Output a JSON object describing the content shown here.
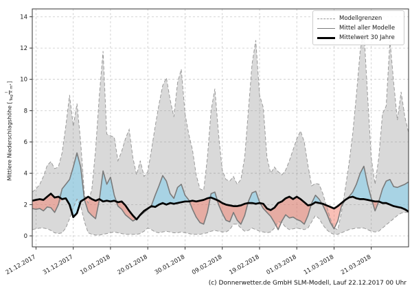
{
  "figure": {
    "background": "#ffffff",
    "caption": "(c) Donnerwetter.de GmbH SLM-Modell, Lauf 22.12.2017 00 Uhr"
  },
  "legend": {
    "items": [
      {
        "label": "Modellgrenzen",
        "sample": "dashed-gray-line"
      },
      {
        "label": "Mittel aller Modelle",
        "sample": "solid-gray-line"
      },
      {
        "label": "Mittelwert 30 Jahre",
        "sample": "thick-black-line"
      }
    ]
  },
  "chart_data": {
    "type": "line",
    "title": "",
    "ylabel_prefix": "Mittlere Niederschlagshöhe [",
    "ylabel_frac_num": "l",
    "ylabel_frac_den": "Tag × m²",
    "ylabel_suffix": "]",
    "xlabel": "",
    "x_tick_labels": [
      "21.12.2017",
      "31.12.2017",
      "10.01.2018",
      "20.01.2018",
      "30.01.2018",
      "09.02.2018",
      "19.02.2018",
      "01.03.2018",
      "11.03.2018",
      "21.03.2018"
    ],
    "x_tick_days": [
      0,
      10,
      20,
      30,
      40,
      50,
      60,
      70,
      80,
      90
    ],
    "x_start_day": -1,
    "x_end_day": 100,
    "step_days": 1,
    "y_ticks": [
      0,
      2,
      4,
      6,
      8,
      10,
      12,
      14
    ],
    "ylim": [
      -0.7,
      14.5
    ],
    "grid": true,
    "legend_position": "upper right",
    "series": [
      {
        "name": "Modellgrenzen (obere Grenze)",
        "role": "upper_bound",
        "values": [
          2.8,
          3.0,
          3.3,
          3.8,
          4.5,
          4.75,
          4.3,
          4.4,
          5.3,
          7.0,
          9.0,
          7.0,
          8.45,
          6.0,
          2.6,
          2.1,
          3.0,
          5.5,
          9.0,
          11.8,
          6.5,
          6.4,
          6.3,
          4.8,
          5.4,
          6.2,
          6.8,
          5.0,
          3.9,
          4.8,
          3.8,
          4.1,
          5.5,
          7.0,
          8.4,
          9.6,
          10.1,
          8.7,
          7.6,
          9.8,
          10.65,
          7.8,
          6.5,
          5.5,
          3.9,
          3.0,
          2.9,
          5.0,
          8.0,
          9.4,
          6.5,
          4.2,
          3.6,
          3.5,
          3.8,
          3.3,
          3.6,
          5.0,
          8.0,
          11.0,
          12.5,
          9.0,
          8.2,
          5.0,
          4.0,
          4.4,
          4.1,
          3.9,
          4.2,
          4.8,
          5.5,
          6.2,
          6.7,
          6.0,
          4.5,
          3.2,
          3.35,
          3.3,
          2.7,
          1.9,
          1.1,
          0.5,
          0.4,
          1.5,
          3.0,
          4.6,
          6.5,
          9.0,
          11.8,
          13.2,
          9.0,
          5.0,
          3.3,
          5.0,
          7.8,
          8.3,
          12.5,
          9.8,
          7.4,
          9.2,
          7.6,
          6.6
        ]
      },
      {
        "name": "Modellgrenzen (untere Grenze)",
        "role": "lower_bound",
        "values": [
          0.4,
          0.45,
          0.5,
          0.5,
          0.45,
          0.35,
          0.2,
          0.15,
          0.2,
          0.5,
          1.1,
          1.8,
          2.35,
          1.9,
          0.9,
          0.2,
          0.1,
          0.05,
          0.05,
          0.1,
          0.15,
          0.2,
          0.25,
          0.2,
          0.15,
          0.1,
          0.1,
          0.1,
          0.1,
          0.15,
          0.3,
          0.5,
          0.4,
          0.25,
          0.2,
          0.25,
          0.3,
          0.25,
          0.2,
          0.2,
          0.25,
          0.2,
          0.15,
          0.1,
          0.1,
          0.1,
          0.15,
          0.2,
          0.3,
          0.35,
          0.3,
          0.25,
          0.25,
          0.4,
          0.75,
          0.75,
          0.5,
          0.3,
          0.35,
          0.5,
          0.4,
          0.3,
          0.25,
          0.2,
          0.25,
          0.5,
          0.9,
          0.85,
          0.55,
          0.4,
          0.45,
          0.5,
          0.45,
          0.4,
          0.5,
          0.9,
          1.3,
          1.1,
          0.7,
          0.4,
          0.2,
          0.1,
          0.1,
          0.2,
          0.3,
          0.4,
          0.45,
          0.5,
          0.5,
          0.5,
          0.4,
          0.3,
          0.25,
          0.3,
          0.5,
          0.7,
          0.9,
          1.1,
          1.3,
          1.45,
          1.5,
          1.5
        ]
      },
      {
        "name": "Mittel aller Modelle",
        "role": "model_mean",
        "values": [
          1.75,
          1.7,
          1.75,
          1.6,
          1.85,
          1.8,
          1.5,
          2.0,
          3.0,
          3.3,
          3.6,
          4.4,
          5.3,
          4.4,
          2.3,
          1.55,
          1.3,
          1.1,
          2.3,
          4.15,
          3.3,
          3.75,
          2.6,
          1.9,
          1.7,
          1.35,
          1.15,
          0.95,
          1.1,
          1.3,
          1.5,
          1.7,
          1.95,
          2.6,
          3.2,
          3.85,
          3.5,
          2.7,
          2.4,
          3.1,
          3.3,
          2.6,
          2.3,
          1.7,
          1.2,
          0.85,
          0.75,
          1.5,
          2.7,
          2.8,
          2.0,
          1.45,
          1.0,
          0.9,
          1.5,
          1.0,
          0.75,
          1.3,
          2.2,
          2.75,
          2.85,
          2.15,
          1.75,
          1.5,
          1.25,
          0.85,
          0.4,
          0.95,
          1.35,
          1.15,
          1.2,
          1.05,
          0.95,
          0.75,
          1.3,
          2.1,
          2.6,
          2.35,
          1.95,
          1.45,
          0.85,
          0.45,
          0.95,
          1.9,
          2.3,
          2.5,
          2.8,
          3.3,
          4.0,
          4.45,
          3.3,
          2.4,
          1.6,
          2.2,
          3.0,
          3.5,
          3.6,
          3.15,
          3.1,
          3.2,
          3.3,
          3.45
        ]
      },
      {
        "name": "Mittelwert 30 Jahre",
        "role": "mean_30y",
        "values": [
          2.25,
          2.3,
          2.35,
          2.3,
          2.5,
          2.7,
          2.45,
          2.5,
          2.35,
          2.4,
          2.0,
          1.2,
          1.45,
          2.2,
          2.35,
          2.5,
          2.35,
          2.25,
          2.35,
          2.2,
          2.25,
          2.2,
          2.25,
          2.15,
          2.2,
          1.95,
          1.6,
          1.3,
          1.05,
          1.35,
          1.6,
          1.75,
          1.9,
          1.85,
          2.0,
          2.1,
          2.0,
          2.1,
          2.05,
          2.1,
          2.15,
          2.2,
          2.2,
          2.25,
          2.2,
          2.25,
          2.3,
          2.4,
          2.45,
          2.35,
          2.25,
          2.1,
          2.0,
          1.95,
          1.9,
          1.9,
          1.95,
          2.05,
          2.1,
          2.1,
          2.05,
          2.1,
          2.05,
          1.75,
          1.65,
          1.8,
          2.1,
          2.2,
          2.4,
          2.5,
          2.35,
          2.5,
          2.35,
          2.15,
          1.95,
          2.0,
          2.15,
          2.1,
          2.05,
          1.95,
          1.85,
          1.75,
          1.9,
          2.1,
          2.3,
          2.45,
          2.5,
          2.4,
          2.35,
          2.35,
          2.3,
          2.25,
          2.2,
          2.2,
          2.1,
          2.1,
          2.0,
          1.9,
          1.85,
          1.8,
          1.7,
          1.55
        ]
      }
    ],
    "style": {
      "band_fill": "rgba(130,130,130,0.30)",
      "above_fill": "rgba(135,206,235,0.60)",
      "below_fill": "rgba(244,128,110,0.50)",
      "bound_color": "#999999",
      "model_mean_color": "#7a7a7a",
      "mean30_color": "#000000",
      "grid_color": "#c9c9c9",
      "spine_color": "#333333",
      "tick_label_color": "#1a1a1a"
    }
  }
}
